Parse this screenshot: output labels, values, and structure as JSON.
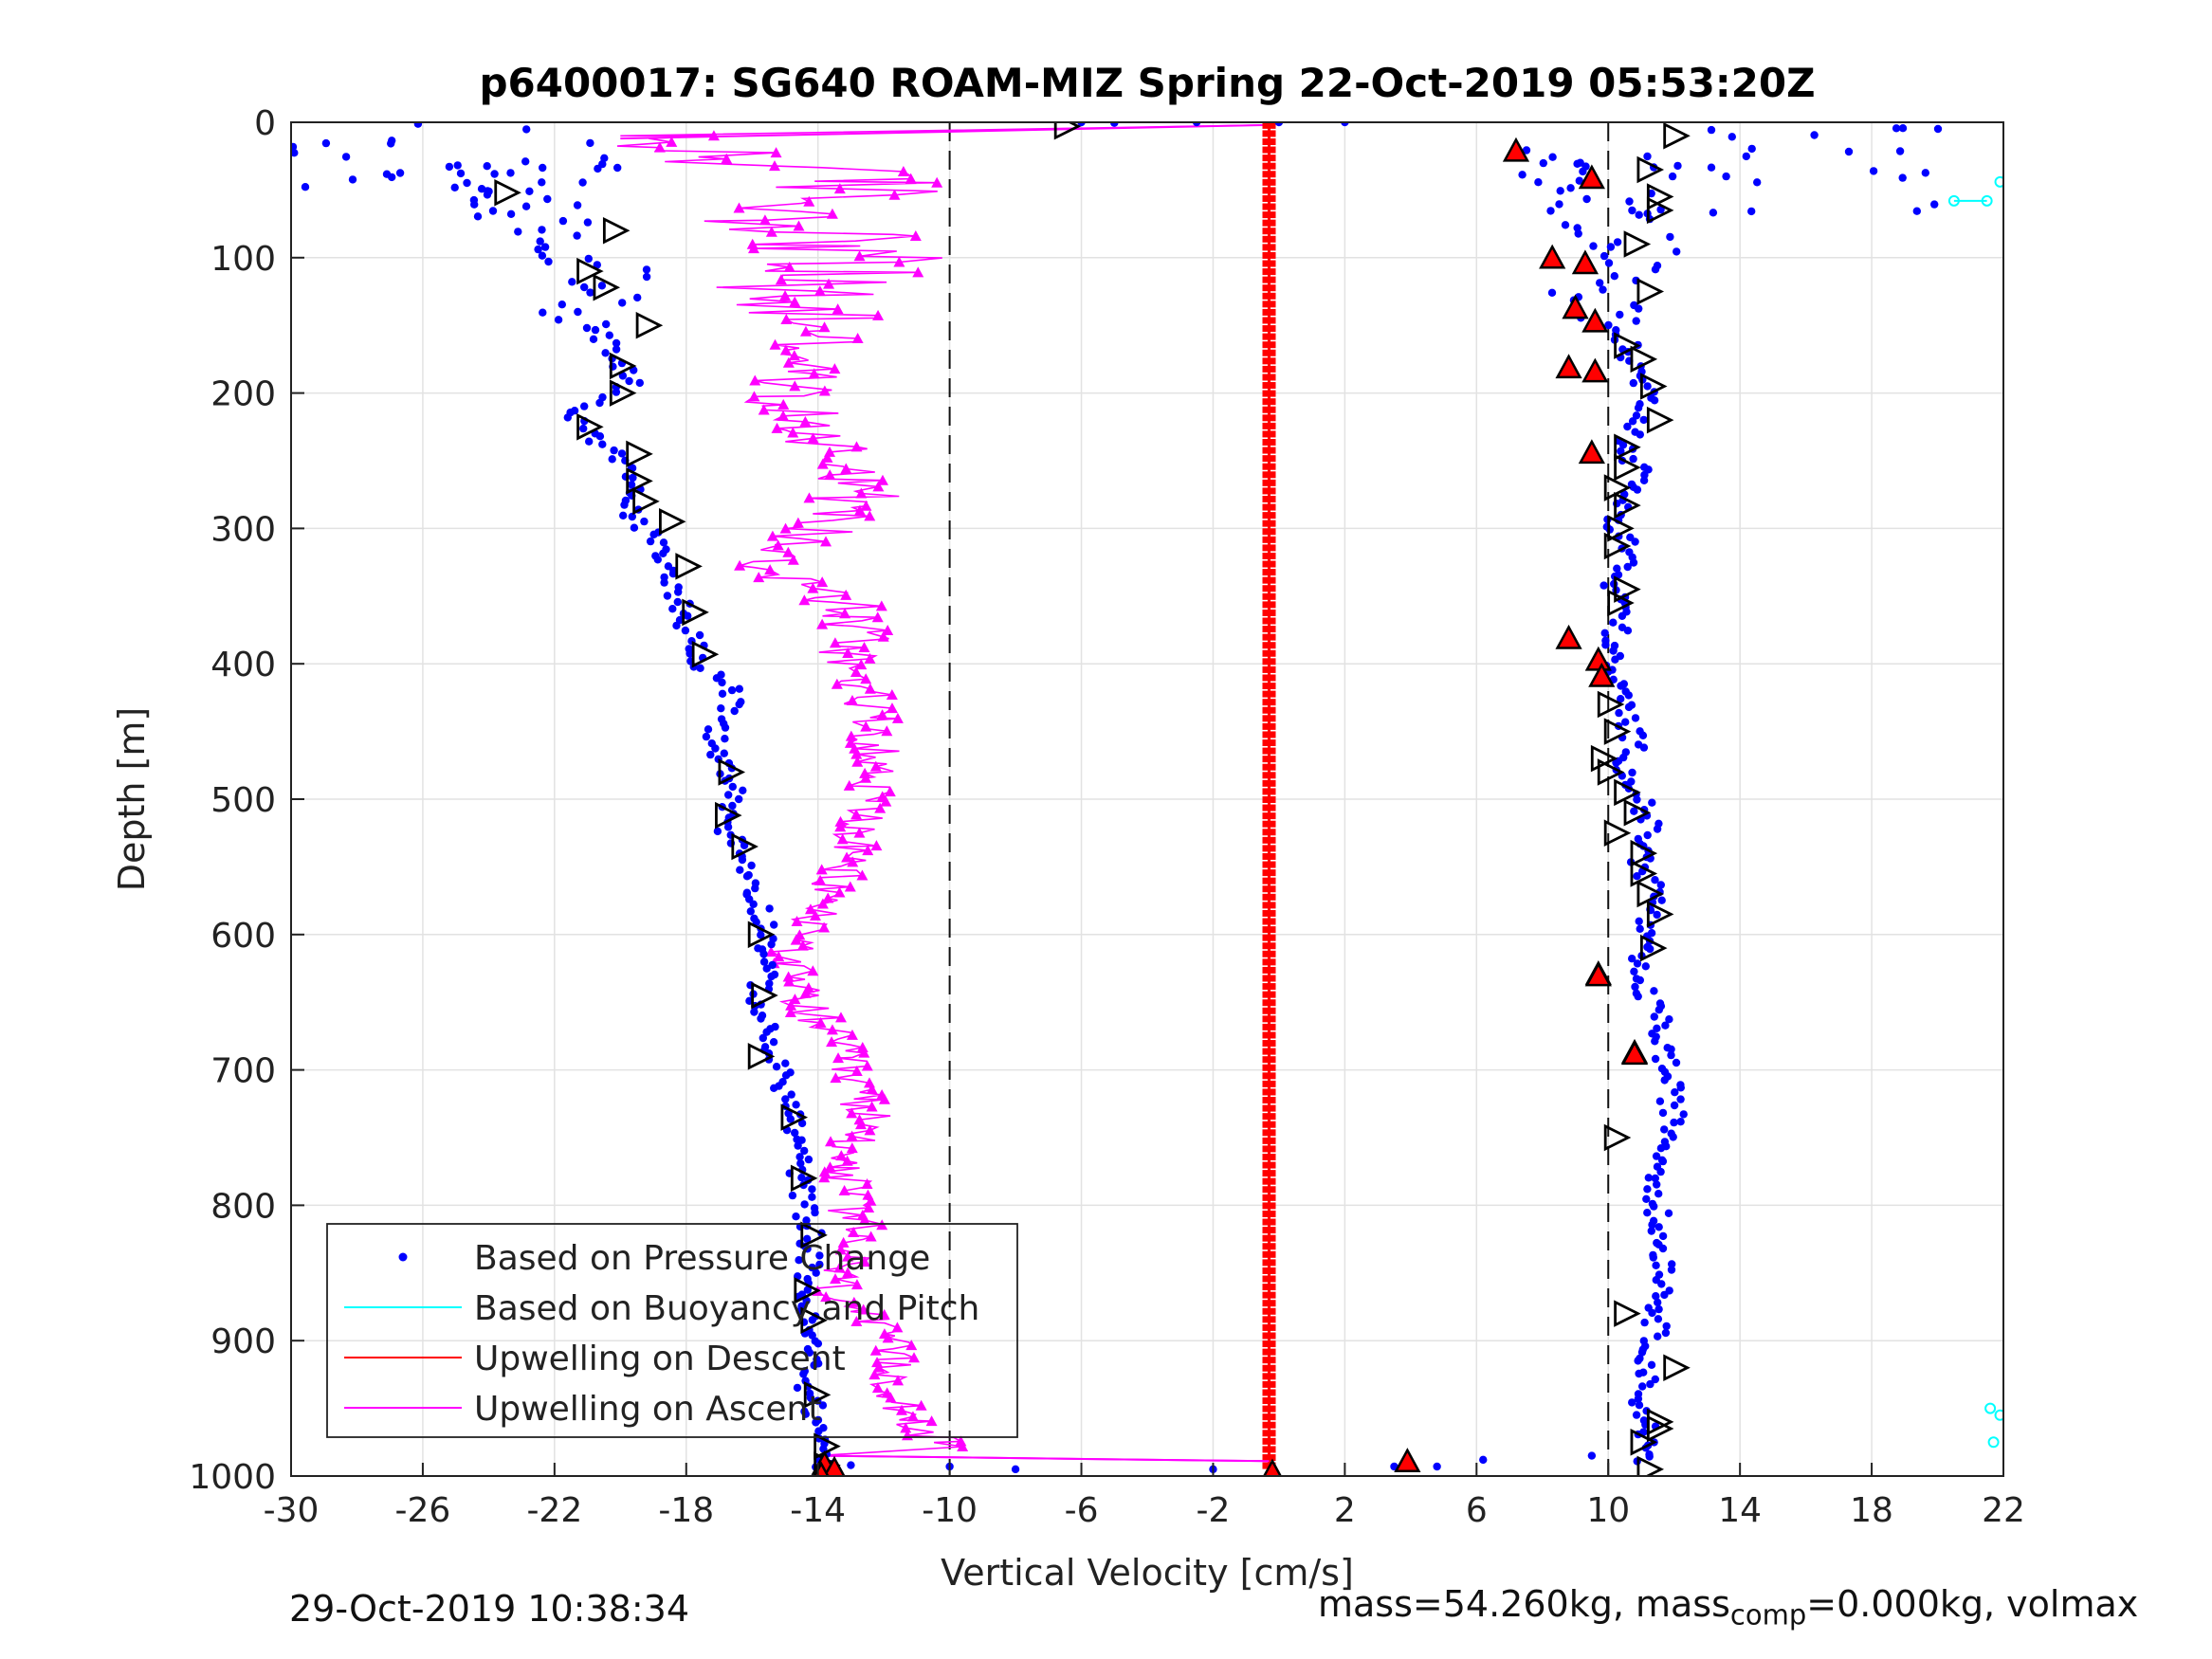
{
  "chart_data": {
    "type": "scatter",
    "title": "p6400017: SG640 ROAM-MIZ Spring 22-Oct-2019 05:53:20Z",
    "xlabel": "Vertical Velocity [cm/s]",
    "ylabel": "Depth [m]",
    "xlim": [
      -30,
      22
    ],
    "ylim": [
      1000,
      0
    ],
    "y_reversed": true,
    "grid": true,
    "xticks": [
      -30,
      -26,
      -22,
      -18,
      -14,
      -10,
      -6,
      -2,
      2,
      6,
      10,
      14,
      18,
      22
    ],
    "yticks": [
      0,
      100,
      200,
      300,
      400,
      500,
      600,
      700,
      800,
      900,
      1000
    ],
    "reference_lines": [
      -10,
      10
    ],
    "legend": {
      "placement": "bottom-left",
      "entries": [
        {
          "label": "Based on Pressure Change",
          "color": "#0000ff",
          "style": "dots"
        },
        {
          "label": "Based on Buoyancy and Pitch",
          "color": "#00ffff",
          "style": "line"
        },
        {
          "label": "Upwelling on Descent",
          "color": "#ff0000",
          "style": "line"
        },
        {
          "label": "Upwelling on Ascent",
          "color": "#ff00ff",
          "style": "line"
        }
      ]
    },
    "series": [
      {
        "name": "Based on Pressure Change",
        "color": "#0000ff",
        "branches": [
          {
            "x": [
              -24,
              -23.5,
              -22.5,
              -21,
              -20.5,
              -21,
              -20.5,
              -20,
              -19.5,
              -20,
              -21.5,
              -21,
              -20,
              -19.5,
              -19.8,
              -19.2,
              -18.7,
              -18.3,
              -18,
              -17.5,
              -16.5,
              -17.2,
              -16.8,
              -16.5,
              -16.8,
              -16.2,
              -15.8,
              -15.5,
              -15.6,
              -15.8,
              -15.5,
              -15.2,
              -14.8,
              -14.6,
              -14.5,
              -14.2,
              -14.3,
              -14.4,
              -14.2,
              -14.3,
              -13.9,
              -13.7
            ],
            "y": [
              30,
              55,
              75,
              100,
              120,
              140,
              160,
              180,
              190,
              200,
              215,
              230,
              250,
              270,
              285,
              300,
              325,
              345,
              370,
              400,
              420,
              450,
              480,
              500,
              520,
              545,
              575,
              600,
              620,
              650,
              680,
              700,
              730,
              760,
              790,
              820,
              850,
              880,
              910,
              940,
              970,
              1000
            ]
          },
          {
            "x": [
              7.5,
              9.5,
              10.5,
              11,
              10,
              9.5,
              10.5,
              10.8,
              11.3,
              10.5,
              11,
              10.5,
              10.2,
              10.8,
              10,
              10.5,
              10.2,
              10,
              10.5,
              10.8,
              10.5,
              11,
              11.2,
              11,
              11.5,
              11,
              10.8,
              11.5,
              11.8,
              12,
              11.5,
              11.5,
              11.8,
              11.5,
              11.3,
              11,
              11.2,
              11
            ],
            "y": [
              20,
              60,
              80,
              100,
              120,
              140,
              160,
              180,
              210,
              240,
              260,
              280,
              300,
              320,
              340,
              360,
              380,
              400,
              430,
              460,
              480,
              500,
              520,
              550,
              570,
              600,
              630,
              660,
              700,
              740,
              780,
              820,
              850,
              880,
              910,
              940,
              970,
              990
            ]
          }
        ]
      },
      {
        "name": "Based on Buoyancy and Pitch",
        "color": "#00ffff",
        "x": [
          20.5,
          21.5,
          21.9,
          21.6,
          21.9,
          21.7
        ],
        "y": [
          58,
          58,
          44,
          950,
          955,
          975
        ]
      },
      {
        "name": "Upwelling on Descent",
        "color": "#ff0000",
        "x": [
          -0.3,
          -0.3
        ],
        "y": [
          0,
          1000
        ]
      },
      {
        "name": "Upwelling on Ascent",
        "color": "#ff00ff",
        "x": [
          -0.3,
          -20,
          -12.5,
          -14.5,
          -13,
          -14,
          -15,
          -13.5,
          -14.5,
          -15,
          -14,
          -13,
          -12.5,
          -14,
          -15.2,
          -13,
          -12.8,
          -12.2,
          -12.4,
          -13.5,
          -15,
          -13.5,
          -12.5,
          -13.2,
          -12.8,
          -13.5,
          -12,
          -11.5,
          -11,
          -10.2,
          -14
        ],
        "y": [
          2,
          10,
          45,
          70,
          95,
          110,
          130,
          150,
          180,
          210,
          230,
          250,
          270,
          300,
          330,
          360,
          400,
          450,
          500,
          560,
          630,
          680,
          730,
          780,
          820,
          860,
          900,
          940,
          960,
          980,
          985
        ]
      }
    ],
    "markers": {
      "black_open_triangles": {
        "x": [
          -6.5,
          -23.5,
          -20.2,
          -21,
          -20.5,
          -19.2,
          -20,
          -20,
          -21,
          -19.5,
          -19.5,
          -19.3,
          -18.5,
          -18,
          -17.8,
          -17.5,
          -16.7,
          -16.8,
          -16.3,
          -15.8,
          -15.7,
          -15.8,
          -14.8,
          -14.5,
          -14.2,
          -14.4,
          -14.2,
          -14.1,
          -13.8,
          -13.8,
          12,
          11.2,
          11.5,
          11.5,
          10.8,
          11.2,
          10.5,
          11,
          11.3,
          11.5,
          10.5,
          10.5,
          10.2,
          10.5,
          10.3,
          10.2,
          10.5,
          10.3,
          10,
          10.2,
          9.8,
          10,
          10.5,
          10.8,
          10.2,
          11,
          11,
          11.2,
          11.5,
          11.3,
          10.2,
          10.5,
          12,
          11.5,
          11.5,
          11,
          11.2
        ],
        "y": [
          3,
          52,
          80,
          110,
          122,
          150,
          180,
          200,
          225,
          245,
          265,
          280,
          295,
          328,
          362,
          393,
          480,
          512,
          535,
          600,
          645,
          690,
          735,
          780,
          822,
          863,
          885,
          940,
          978,
          992,
          10,
          35,
          55,
          65,
          90,
          125,
          165,
          175,
          195,
          220,
          240,
          255,
          270,
          283,
          300,
          313,
          345,
          355,
          430,
          450,
          470,
          480,
          495,
          510,
          525,
          540,
          555,
          570,
          585,
          610,
          750,
          880,
          920,
          960,
          965,
          975,
          995
        ]
      },
      "red_filled_triangles": {
        "x": [
          7.2,
          9.5,
          8.3,
          9.3,
          9,
          9.6,
          8.8,
          9.6,
          9.5,
          8.8,
          9.7,
          9.8,
          9.7,
          9.7,
          10.8,
          10.8,
          3.9,
          -13.8,
          -13.5,
          -13.9,
          -0.2
        ],
        "y": [
          22,
          42,
          101,
          105,
          138,
          148,
          182,
          185,
          245,
          382,
          398,
          410,
          630,
          631,
          688,
          689,
          990,
          992,
          996,
          1000,
          998
        ]
      }
    }
  },
  "footer": {
    "date": "29-Oct-2019 10:38:34",
    "mass_prefix": "mass=54.260kg, mass",
    "mass_sub": "comp",
    "mass_suffix": "=0.000kg, volmax"
  }
}
